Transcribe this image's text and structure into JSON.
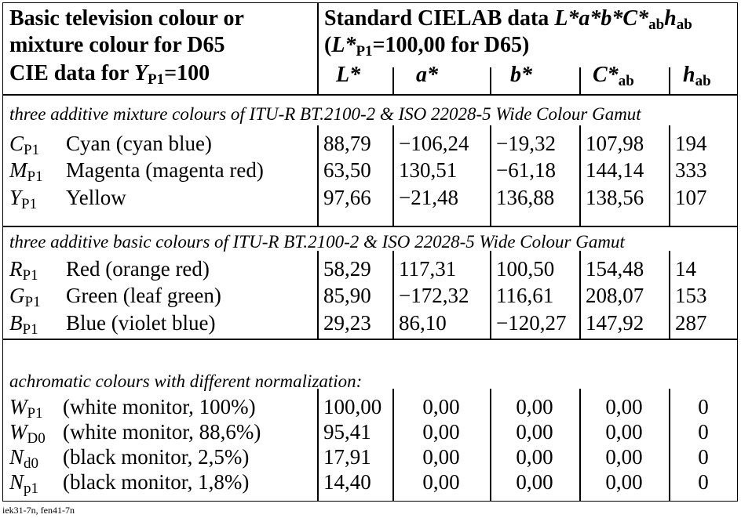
{
  "header": {
    "left_lines": [
      "Basic television colour or",
      "mixture colour for D65"
    ],
    "left_line3_prefix": "CIE data for ",
    "left_line3_sym": "Y",
    "left_line3_sub": "P1",
    "left_line3_suffix": "=100",
    "right_line1_text": "Standard CIELAB data ",
    "right_line1_sym": "L*a*b*C*",
    "right_line1_sub": "ab",
    "right_line1_sym2": "h",
    "right_line1_sub2": "ab",
    "right_line2_open": "(",
    "right_line2_sym": "L*",
    "right_line2_sub": "P1",
    "right_line2_rest": "=100,00 for D65)",
    "columns": [
      {
        "sym": "L*",
        "sub": ""
      },
      {
        "sym": "a*",
        "sub": ""
      },
      {
        "sym": "b*",
        "sub": ""
      },
      {
        "sym": "C*",
        "sub": "ab"
      },
      {
        "sym": "h",
        "sub": "ab"
      }
    ]
  },
  "sections": [
    {
      "title": "three additive mixture colours of ITU-R BT.2100-2 & ISO 22028-5 Wide Colour Gamut",
      "rows": [
        {
          "sym": "C",
          "sub": "P1",
          "name": "Cyan (cyan blue)",
          "L": "88,79",
          "a": "−106,24",
          "b": "−19,32",
          "C": "107,98",
          "h": "194"
        },
        {
          "sym": "M",
          "sub": "P1",
          "name": "Magenta (magenta red)",
          "L": "63,50",
          "a": "130,51",
          "b": "−61,18",
          "C": "144,14",
          "h": "333"
        },
        {
          "sym": "Y",
          "sub": "P1",
          "name": "Yellow",
          "L": "97,66",
          "a": "−21,48",
          "b": "136,88",
          "C": "138,56",
          "h": "107"
        }
      ]
    },
    {
      "title": "three additive basic colours of ITU-R BT.2100-2 & ISO 22028-5 Wide Colour Gamut",
      "rows": [
        {
          "sym": "R",
          "sub": "P1",
          "name": "Red (orange red)",
          "L": "58,29",
          "a": "117,31",
          "b": "100,50",
          "C": "154,48",
          "h": "14"
        },
        {
          "sym": "G",
          "sub": "P1",
          "name": "Green (leaf green)",
          "L": "85,90",
          "a": "−172,32",
          "b": "116,61",
          "C": "208,07",
          "h": "153"
        },
        {
          "sym": "B",
          "sub": "P1",
          "name": "Blue (violet blue)",
          "L": "29,23",
          "a": "86,10",
          "b": "−120,27",
          "C": "147,92",
          "h": "287"
        }
      ]
    },
    {
      "title": "achromatic colours with different normalization:",
      "rows": [
        {
          "sym": "W",
          "sub": "P1",
          "name": "(white monitor, 100%)",
          "L": "100,00",
          "a": "0,00",
          "b": "0,00",
          "C": "0,00",
          "h": "0"
        },
        {
          "sym": "W",
          "sub": "D0",
          "name": "(white monitor, 88,6%)",
          "L": "95,41",
          "a": "0,00",
          "b": "0,00",
          "C": "0,00",
          "h": "0"
        },
        {
          "sym": "N",
          "sub": "d0",
          "name": "(black monitor, 2,5%)",
          "L": "17,91",
          "a": "0,00",
          "b": "0,00",
          "C": "0,00",
          "h": "0"
        },
        {
          "sym": "N",
          "sub": "p1",
          "name": "(black monitor, 1,8%)",
          "L": "14,40",
          "a": "0,00",
          "b": "0,00",
          "C": "0,00",
          "h": "0"
        }
      ]
    }
  ],
  "footer": "iek31-7n, fen41-7n"
}
